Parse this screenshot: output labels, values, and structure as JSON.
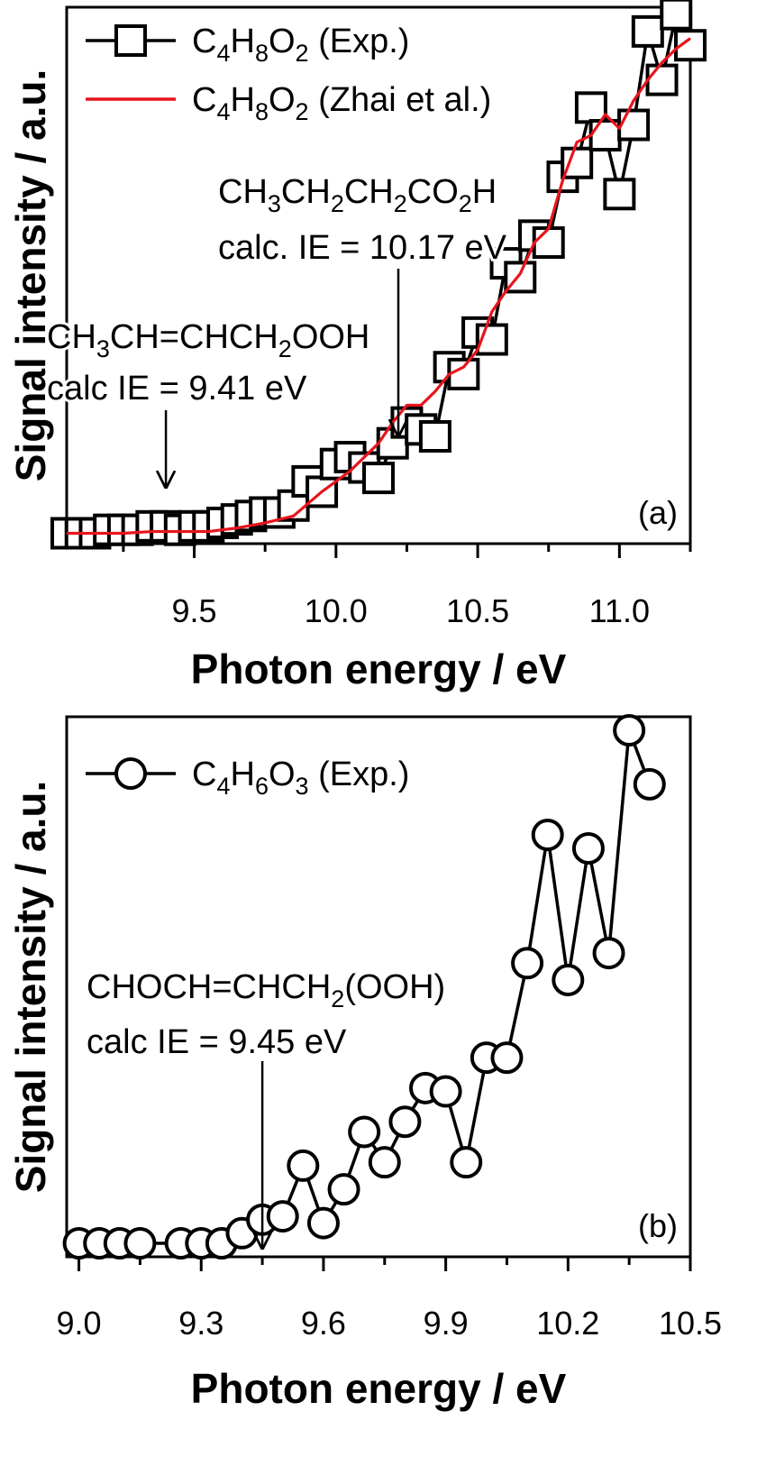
{
  "chart_data": [
    {
      "type": "line",
      "panel_label": "(a)",
      "xlabel": "Photon energy / eV",
      "ylabel": "Signal intensity / a.u.",
      "xlim": [
        9.05,
        11.25
      ],
      "ylim": [
        -0.3,
        15.2
      ],
      "xticks": [
        9.5,
        10.0,
        10.5,
        11.0
      ],
      "xtick_labels": [
        "9.5",
        "10.0",
        "10.5",
        "11.0"
      ],
      "y_tick_labels_shown": false,
      "legend_position": "top-left",
      "series": [
        {
          "name_parts": [
            [
              "C",
              ""
            ],
            [
              "4",
              "sub"
            ],
            [
              "H",
              ""
            ],
            [
              "8",
              "sub"
            ],
            [
              "O",
              ""
            ],
            [
              "2",
              "sub"
            ],
            [
              " (Exp.)",
              ""
            ]
          ],
          "marker": "square",
          "color": "#000000",
          "x": [
            9.05,
            9.1,
            9.15,
            9.2,
            9.25,
            9.3,
            9.35,
            9.4,
            9.45,
            9.5,
            9.55,
            9.6,
            9.65,
            9.7,
            9.75,
            9.8,
            9.85,
            9.9,
            9.95,
            10.0,
            10.05,
            10.1,
            10.15,
            10.2,
            10.25,
            10.3,
            10.35,
            10.4,
            10.45,
            10.5,
            10.55,
            10.6,
            10.65,
            10.7,
            10.75,
            10.8,
            10.85,
            10.9,
            10.95,
            11.0,
            11.05,
            11.1,
            11.15,
            11.2,
            11.25
          ],
          "y": [
            0.0,
            0.0,
            0.0,
            0.1,
            0.1,
            0.1,
            0.2,
            0.2,
            0.1,
            0.2,
            0.2,
            0.3,
            0.4,
            0.5,
            0.6,
            0.6,
            0.8,
            1.5,
            1.2,
            2.0,
            2.2,
            1.9,
            1.6,
            2.6,
            3.2,
            3.0,
            2.8,
            4.8,
            4.6,
            5.8,
            5.6,
            7.8,
            7.4,
            8.6,
            8.4,
            10.3,
            10.7,
            12.3,
            11.5,
            9.8,
            11.8,
            14.5,
            13.1,
            15.0,
            14.1
          ]
        },
        {
          "name_parts": [
            [
              "C",
              ""
            ],
            [
              "4",
              "sub"
            ],
            [
              "H",
              ""
            ],
            [
              "8",
              "sub"
            ],
            [
              "O",
              ""
            ],
            [
              "2",
              "sub"
            ],
            [
              " (Zhai et al.)",
              ""
            ]
          ],
          "marker": "none",
          "color": "#e8141c",
          "x": [
            9.05,
            9.15,
            9.25,
            9.35,
            9.45,
            9.55,
            9.65,
            9.75,
            9.85,
            9.95,
            10.05,
            10.15,
            10.2,
            10.25,
            10.3,
            10.35,
            10.4,
            10.45,
            10.5,
            10.55,
            10.6,
            10.65,
            10.7,
            10.75,
            10.8,
            10.85,
            10.9,
            10.95,
            11.0,
            11.05,
            11.1,
            11.15,
            11.2,
            11.25
          ],
          "y": [
            0.0,
            0.0,
            0.0,
            0.05,
            0.05,
            0.05,
            0.15,
            0.3,
            0.5,
            1.2,
            1.8,
            2.6,
            3.2,
            3.7,
            3.7,
            4.1,
            4.6,
            4.8,
            5.3,
            6.4,
            7.0,
            7.5,
            8.4,
            8.8,
            10.2,
            11.3,
            11.5,
            12.1,
            11.7,
            12.5,
            13.1,
            13.6,
            14.0,
            14.3
          ]
        }
      ],
      "annotations": [
        {
          "lines": [
            [
              [
                "CH",
                ""
              ],
              [
                "3",
                "sub"
              ],
              [
                "CH=CHCH",
                ""
              ],
              [
                "2",
                "sub"
              ],
              [
                "OOH",
                ""
              ]
            ],
            [
              [
                "calc IE = 9.41 eV",
                ""
              ]
            ]
          ],
          "arrow_x": 9.4
        },
        {
          "lines": [
            [
              [
                "CH",
                ""
              ],
              [
                "3",
                "sub"
              ],
              [
                "CH",
                ""
              ],
              [
                "2",
                "sub"
              ],
              [
                "CH",
                ""
              ],
              [
                "2",
                "sub"
              ],
              [
                "CO",
                ""
              ],
              [
                "2",
                "sub"
              ],
              [
                "H",
                ""
              ]
            ],
            [
              [
                "calc. IE = 10.17 eV",
                ""
              ]
            ]
          ],
          "arrow_x": 10.22
        }
      ]
    },
    {
      "type": "line",
      "panel_label": "(b)",
      "xlabel": "Photon energy / eV",
      "ylabel": "Signal intensity / a.u.",
      "xlim": [
        8.97,
        10.5
      ],
      "ylim": [
        -0.4,
        15.6
      ],
      "xticks": [
        9.0,
        9.3,
        9.6,
        9.9,
        10.2,
        10.5
      ],
      "xtick_labels": [
        "9.0",
        "9.3",
        "9.6",
        "9.9",
        "10.2",
        "10.5"
      ],
      "y_tick_labels_shown": false,
      "legend_position": "top-left",
      "series": [
        {
          "name_parts": [
            [
              "C",
              ""
            ],
            [
              "4",
              "sub"
            ],
            [
              "H",
              ""
            ],
            [
              "6",
              "sub"
            ],
            [
              "O",
              ""
            ],
            [
              "3",
              "sub"
            ],
            [
              " (Exp.)",
              ""
            ]
          ],
          "marker": "circle",
          "color": "#000000",
          "x": [
            9.0,
            9.05,
            9.1,
            9.15,
            9.25,
            9.3,
            9.35,
            9.4,
            9.45,
            9.5,
            9.55,
            9.6,
            9.65,
            9.7,
            9.75,
            9.8,
            9.85,
            9.9,
            9.95,
            10.0,
            10.05,
            10.1,
            10.15,
            10.2,
            10.25,
            10.3,
            10.35,
            10.4
          ],
          "y": [
            0.0,
            0.0,
            0.0,
            0.0,
            0.0,
            0.0,
            0.0,
            0.3,
            0.7,
            0.8,
            2.3,
            0.6,
            1.6,
            3.3,
            2.4,
            3.6,
            4.6,
            4.5,
            2.4,
            5.5,
            5.5,
            8.3,
            12.1,
            7.8,
            11.7,
            8.6,
            15.2,
            13.6
          ]
        }
      ],
      "annotations": [
        {
          "lines": [
            [
              [
                "CHOCH=CHCH",
                ""
              ],
              [
                "2",
                "sub"
              ],
              [
                "(OOH)",
                ""
              ]
            ],
            [
              [
                "calc IE = 9.45 eV",
                ""
              ]
            ]
          ],
          "arrow_x": 9.45
        }
      ]
    }
  ]
}
